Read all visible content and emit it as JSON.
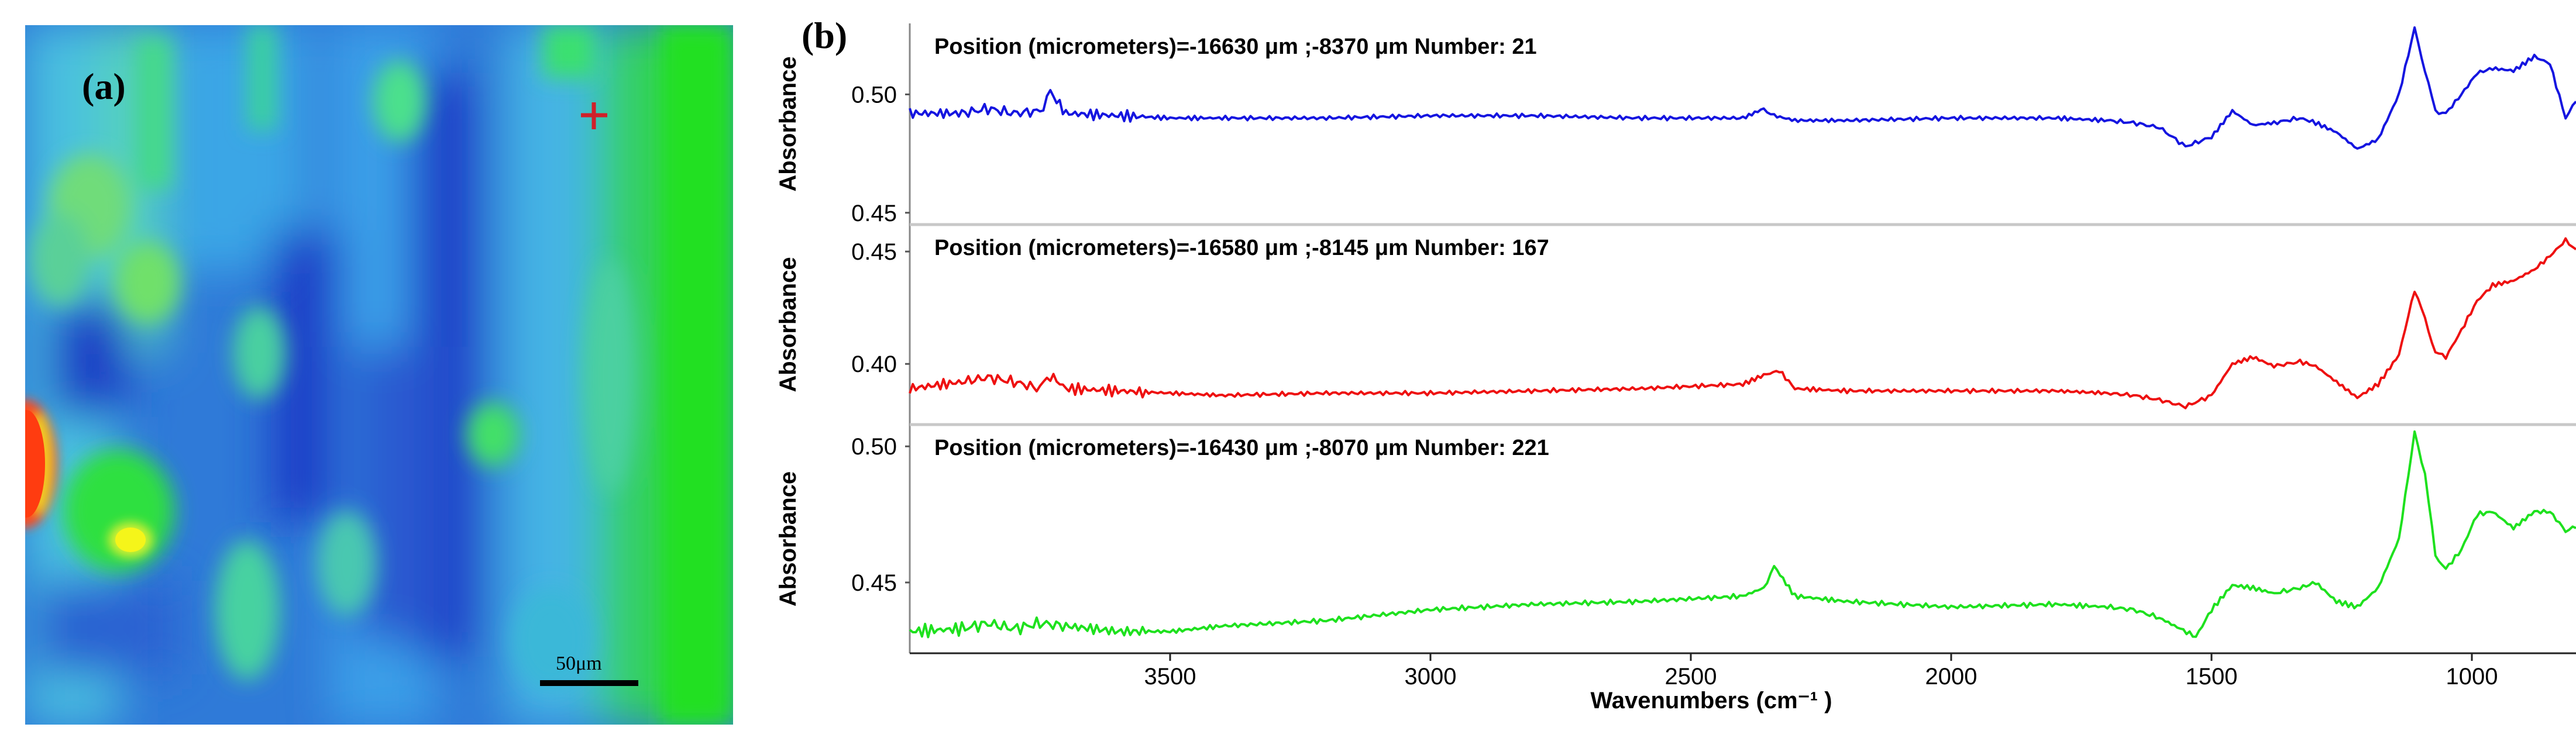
{
  "panel_a": {
    "label": "(a)",
    "scale_bar_label": "50μm",
    "marker": "cross-marker"
  },
  "panel_b": {
    "label": "(b)",
    "xlabel": "Wavenumbers (cm⁻¹ )",
    "x_ticks": [
      "3500",
      "3000",
      "2500",
      "2000",
      "1500",
      "1000"
    ]
  },
  "chart_data": [
    {
      "type": "heatmap",
      "title": "(a)",
      "scale_bar": "50μm",
      "colormap": [
        "#1a2fbf",
        "#2a6bd8",
        "#4fb6e6",
        "#35d07a",
        "#3ff02a",
        "#f5f01a",
        "#ff3c10"
      ]
    },
    {
      "type": "line",
      "title": "Position (micrometers)=-16630 μm ;-8370 μm  Number: 21",
      "color": "#1515e0",
      "xlim": [
        4000,
        800
      ],
      "ylim": [
        0.445,
        0.53
      ],
      "ylabel": "Absorbance",
      "yticks": [
        0.5,
        0.45
      ],
      "ytick_labels": [
        "0.50",
        "0.45"
      ],
      "x": [
        4000,
        3900,
        3850,
        3800,
        3750,
        3730,
        3700,
        3600,
        3500,
        3400,
        3200,
        3000,
        2800,
        2600,
        2400,
        2360,
        2340,
        2300,
        2200,
        2000,
        1800,
        1700,
        1650,
        1600,
        1550,
        1500,
        1460,
        1420,
        1380,
        1330,
        1300,
        1260,
        1220,
        1180,
        1140,
        1110,
        1090,
        1070,
        1050,
        1020,
        990,
        960,
        920,
        880,
        850,
        820,
        800
      ],
      "y": [
        0.492,
        0.492,
        0.494,
        0.492,
        0.493,
        0.501,
        0.492,
        0.491,
        0.49,
        0.49,
        0.49,
        0.491,
        0.491,
        0.49,
        0.49,
        0.494,
        0.491,
        0.489,
        0.489,
        0.49,
        0.49,
        0.489,
        0.488,
        0.486,
        0.478,
        0.482,
        0.493,
        0.487,
        0.488,
        0.49,
        0.488,
        0.484,
        0.477,
        0.481,
        0.5,
        0.528,
        0.51,
        0.493,
        0.492,
        0.5,
        0.509,
        0.511,
        0.51,
        0.516,
        0.513,
        0.49,
        0.497
      ]
    },
    {
      "type": "line",
      "title": "Position (micrometers)=-16580 μm ;-8145 μm  Number: 167",
      "color": "#ee1111",
      "xlim": [
        4000,
        800
      ],
      "ylim": [
        0.373,
        0.462
      ],
      "ylabel": "Absorbance",
      "yticks": [
        0.45,
        0.4
      ],
      "ytick_labels": [
        "0.45",
        "0.40"
      ],
      "x": [
        4000,
        3900,
        3850,
        3800,
        3750,
        3730,
        3700,
        3600,
        3500,
        3400,
        3200,
        3000,
        2800,
        2600,
        2400,
        2360,
        2330,
        2300,
        2200,
        2000,
        1800,
        1700,
        1650,
        1600,
        1550,
        1500,
        1460,
        1420,
        1380,
        1330,
        1300,
        1260,
        1220,
        1180,
        1140,
        1110,
        1090,
        1070,
        1050,
        1020,
        990,
        960,
        920,
        880,
        850,
        820,
        800
      ],
      "y": [
        0.389,
        0.392,
        0.394,
        0.392,
        0.389,
        0.395,
        0.389,
        0.388,
        0.387,
        0.386,
        0.387,
        0.387,
        0.388,
        0.389,
        0.391,
        0.395,
        0.397,
        0.389,
        0.388,
        0.388,
        0.388,
        0.387,
        0.386,
        0.384,
        0.381,
        0.386,
        0.4,
        0.403,
        0.399,
        0.401,
        0.399,
        0.392,
        0.385,
        0.391,
        0.404,
        0.433,
        0.42,
        0.405,
        0.403,
        0.415,
        0.428,
        0.435,
        0.437,
        0.442,
        0.448,
        0.455,
        0.451
      ]
    },
    {
      "type": "line",
      "title": "Position (micrometers)=-16430 μm ;-8070 μm  Number: 221",
      "color": "#1ee11e",
      "xlim": [
        4000,
        800
      ],
      "ylim": [
        0.424,
        0.508
      ],
      "ylabel": "Absorbance",
      "yticks": [
        0.5,
        0.45
      ],
      "ytick_labels": [
        "0.50",
        "0.45"
      ],
      "x": [
        4000,
        3900,
        3850,
        3800,
        3750,
        3700,
        3600,
        3500,
        3400,
        3200,
        3000,
        2800,
        2600,
        2400,
        2360,
        2340,
        2300,
        2200,
        2000,
        1800,
        1700,
        1650,
        1600,
        1560,
        1530,
        1500,
        1460,
        1420,
        1380,
        1330,
        1300,
        1260,
        1220,
        1180,
        1140,
        1110,
        1090,
        1070,
        1050,
        1020,
        990,
        960,
        920,
        880,
        850,
        820,
        800
      ],
      "y": [
        0.432,
        0.433,
        0.435,
        0.433,
        0.435,
        0.434,
        0.432,
        0.432,
        0.434,
        0.436,
        0.44,
        0.442,
        0.443,
        0.445,
        0.448,
        0.456,
        0.445,
        0.443,
        0.441,
        0.442,
        0.441,
        0.44,
        0.437,
        0.433,
        0.43,
        0.44,
        0.449,
        0.448,
        0.446,
        0.448,
        0.45,
        0.443,
        0.441,
        0.448,
        0.466,
        0.505,
        0.49,
        0.46,
        0.455,
        0.462,
        0.475,
        0.476,
        0.47,
        0.476,
        0.476,
        0.469,
        0.47
      ]
    }
  ]
}
